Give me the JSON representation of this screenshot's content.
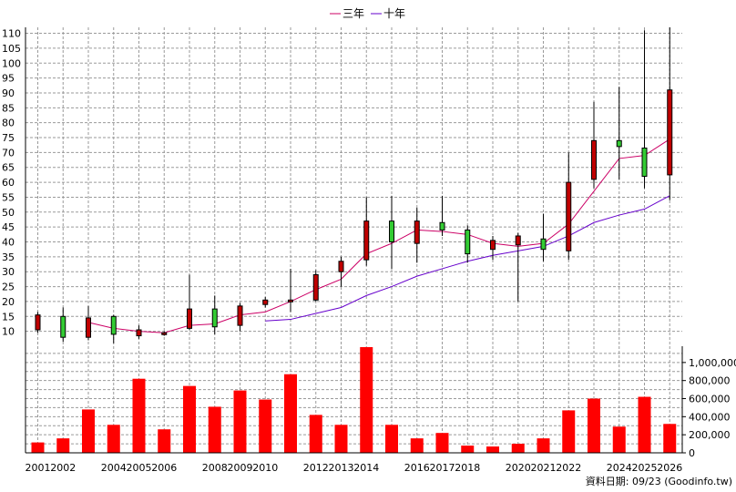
{
  "credit": "資料日期: 09/23  (Goodinfo.tw)",
  "chart_data": [
    {
      "type": "candlestick",
      "legend_position": "top-center",
      "grid": true,
      "ylim": [
        5,
        112
      ],
      "yticks": [
        10,
        15,
        20,
        25,
        30,
        35,
        40,
        45,
        50,
        55,
        60,
        65,
        70,
        75,
        80,
        85,
        90,
        95,
        100,
        105,
        110
      ],
      "years": [
        2001,
        2002,
        2003,
        2004,
        2005,
        2006,
        2007,
        2008,
        2009,
        2010,
        2011,
        2012,
        2013,
        2014,
        2015,
        2016,
        2017,
        2018,
        2019,
        2020,
        2021,
        2022,
        2023,
        2024,
        2025,
        2026
      ],
      "x_tick_labels": [
        "2001",
        "2002",
        "2004",
        "2005",
        "2006",
        "2008",
        "2009",
        "2010",
        "2012",
        "2013",
        "2014",
        "2016",
        "2017",
        "2018",
        "2020",
        "2021",
        "2022",
        "2024",
        "2025",
        "2026"
      ],
      "x_tick_years": [
        2001,
        2002,
        2004,
        2005,
        2006,
        2008,
        2009,
        2010,
        2012,
        2013,
        2014,
        2016,
        2017,
        2018,
        2020,
        2021,
        2022,
        2024,
        2025,
        2026
      ],
      "candles": [
        {
          "year": 2001,
          "open": 15.5,
          "close": 10.5,
          "high": 16.5,
          "low": 9.5,
          "color": "#c00000"
        },
        {
          "year": 2002,
          "open": 8,
          "close": 15,
          "high": 18,
          "low": 6.5,
          "color": "#33cc33"
        },
        {
          "year": 2003,
          "open": 14.5,
          "close": 8,
          "high": 18.5,
          "low": 7,
          "color": "#c00000"
        },
        {
          "year": 2004,
          "open": 9,
          "close": 15,
          "high": 15.5,
          "low": 6,
          "color": "#33cc33"
        },
        {
          "year": 2005,
          "open": 10.5,
          "close": 8.5,
          "high": 12,
          "low": 7.5,
          "color": "#c00000"
        },
        {
          "year": 2006,
          "open": 9.5,
          "close": 9.5,
          "high": 10,
          "low": 8.5,
          "color": "#c00000"
        },
        {
          "year": 2007,
          "open": 17.5,
          "close": 11,
          "high": 29,
          "low": 10.5,
          "color": "#c00000"
        },
        {
          "year": 2008,
          "open": 11.5,
          "close": 17.5,
          "high": 22,
          "low": 9,
          "color": "#33cc33"
        },
        {
          "year": 2009,
          "open": 18.5,
          "close": 12,
          "high": 19.5,
          "low": 10,
          "color": "#c00000"
        },
        {
          "year": 2010,
          "open": 20.5,
          "close": 19,
          "high": 21.5,
          "low": 18,
          "color": "#c00000"
        },
        {
          "year": 2011,
          "open": 20.5,
          "close": 20,
          "high": 31,
          "low": 16.5,
          "color": "#c00000"
        },
        {
          "year": 2012,
          "open": 29,
          "close": 20.5,
          "high": 30.5,
          "low": 20,
          "color": "#c00000"
        },
        {
          "year": 2013,
          "open": 33.5,
          "close": 30,
          "high": 35,
          "low": 25,
          "color": "#c00000"
        },
        {
          "year": 2014,
          "open": 47,
          "close": 34,
          "high": 55,
          "low": 32,
          "color": "#c00000"
        },
        {
          "year": 2015,
          "open": 40,
          "close": 47,
          "high": 55.5,
          "low": 31,
          "color": "#33cc33"
        },
        {
          "year": 2016,
          "open": 47,
          "close": 39.5,
          "high": 51.5,
          "low": 33,
          "color": "#c00000"
        },
        {
          "year": 2017,
          "open": 44,
          "close": 46.5,
          "high": 55.5,
          "low": 42,
          "color": "#33cc33"
        },
        {
          "year": 2018,
          "open": 36,
          "close": 44,
          "high": 45.5,
          "low": 33,
          "color": "#33cc33"
        },
        {
          "year": 2019,
          "open": 40.5,
          "close": 37.5,
          "high": 42,
          "low": 34,
          "color": "#c00000"
        },
        {
          "year": 2020,
          "open": 42,
          "close": 39,
          "high": 43,
          "low": 20,
          "color": "#c00000"
        },
        {
          "year": 2021,
          "open": 37.5,
          "close": 41,
          "high": 49.5,
          "low": 33.5,
          "color": "#33cc33"
        },
        {
          "year": 2022,
          "open": 60,
          "close": 37,
          "high": 70,
          "low": 34,
          "color": "#c00000"
        },
        {
          "year": 2023,
          "open": 74,
          "close": 61,
          "high": 87,
          "low": 58,
          "color": "#c00000"
        },
        {
          "year": 2024,
          "open": 72,
          "close": 74,
          "high": 92,
          "low": 61,
          "color": "#33cc33"
        },
        {
          "year": 2025,
          "open": 62,
          "close": 71.5,
          "high": 111,
          "low": 58,
          "color": "#33cc33"
        },
        {
          "year": 2026,
          "open": 91,
          "close": 62.5,
          "high": 112,
          "low": 54,
          "color": "#c00000"
        }
      ],
      "series": [
        {
          "name": "三年",
          "color": "#cc0066",
          "points": [
            [
              2003,
              13
            ],
            [
              2004,
              11
            ],
            [
              2005,
              10
            ],
            [
              2006,
              9.5
            ],
            [
              2007,
              12
            ],
            [
              2008,
              12.5
            ],
            [
              2009,
              15.5
            ],
            [
              2010,
              16.5
            ],
            [
              2011,
              20
            ],
            [
              2012,
              24
            ],
            [
              2013,
              27.5
            ],
            [
              2014,
              36
            ],
            [
              2015,
              39.5
            ],
            [
              2016,
              44
            ],
            [
              2017,
              43.5
            ],
            [
              2018,
              42.5
            ],
            [
              2019,
              39.5
            ],
            [
              2020,
              38.5
            ],
            [
              2021,
              39.5
            ],
            [
              2022,
              46
            ],
            [
              2023,
              57
            ],
            [
              2024,
              68
            ],
            [
              2025,
              69
            ],
            [
              2026,
              74.5
            ]
          ]
        },
        {
          "name": "十年",
          "color": "#6600cc",
          "points": [
            [
              2010,
              13.5
            ],
            [
              2011,
              14
            ],
            [
              2012,
              16
            ],
            [
              2013,
              18
            ],
            [
              2014,
              22
            ],
            [
              2015,
              25
            ],
            [
              2016,
              28.5
            ],
            [
              2017,
              31
            ],
            [
              2018,
              33.5
            ],
            [
              2019,
              35.5
            ],
            [
              2020,
              37
            ],
            [
              2021,
              38.5
            ],
            [
              2022,
              42
            ],
            [
              2023,
              46.5
            ],
            [
              2024,
              49
            ],
            [
              2025,
              51
            ],
            [
              2026,
              55.5
            ]
          ]
        }
      ]
    },
    {
      "type": "bar",
      "ylim": [
        0,
        1180000
      ],
      "yticks": [
        0,
        200000,
        400000,
        600000,
        800000,
        1000000
      ],
      "ytick_labels": [
        "0",
        "200,000",
        "400,000",
        "600,000",
        "800,000",
        "1,000,000"
      ],
      "bar_color": "#ff0000",
      "values": [
        115000,
        160000,
        480000,
        310000,
        820000,
        260000,
        740000,
        510000,
        690000,
        590000,
        870000,
        420000,
        310000,
        1170000,
        310000,
        160000,
        220000,
        80000,
        70000,
        100000,
        160000,
        470000,
        600000,
        290000,
        620000,
        320000
      ]
    }
  ]
}
